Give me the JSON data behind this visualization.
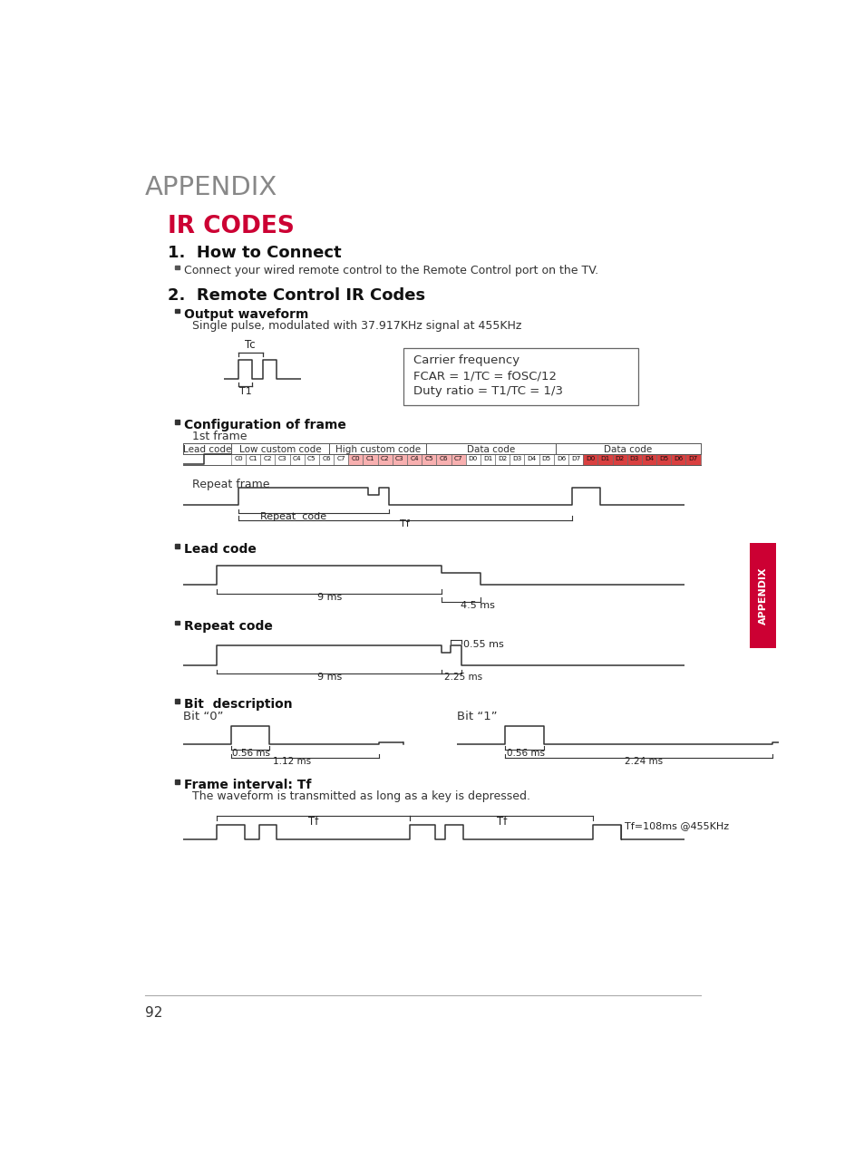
{
  "page_title": "APPENDIX",
  "section_title": "IR CODES",
  "section_title_color": "#cc0033",
  "subsection1": "1.  How to Connect",
  "subsection1_bullet": "Connect your wired remote control to the Remote Control port on the TV.",
  "subsection2": "2.  Remote Control IR Codes",
  "sub2_bullet1": "Output waveform",
  "sub2_bullet1_desc": "Single pulse, modulated with 37.917KHz signal at 455KHz",
  "carrier_box_lines": [
    "Carrier frequency",
    "FCAR = 1/TC = fOSC/12",
    "Duty ratio = T1/TC = 1/3"
  ],
  "config_frame_title": "Configuration of frame",
  "first_frame_label": "1st frame",
  "frame_headers": [
    "Lead code",
    "Low custom code",
    "High custom code",
    "Data code",
    "Data code"
  ],
  "frame_cells_row1": [
    "C0",
    "C1",
    "C2",
    "C3",
    "C4",
    "C5",
    "C6",
    "C7",
    "C0",
    "C1",
    "C2",
    "C3",
    "C4",
    "C5",
    "C6",
    "C7",
    "D0",
    "D1",
    "D2",
    "D3",
    "D4",
    "D5",
    "D6",
    "D7",
    "D0",
    "D1",
    "D2",
    "D3",
    "D4",
    "D5",
    "D6",
    "D7"
  ],
  "repeat_frame_label": "Repeat frame",
  "repeat_code_label": "Repeat  code",
  "tf_label": "Tf",
  "lead_code_title": "Lead code",
  "lead_9ms": "9 ms",
  "lead_45ms": "4.5 ms",
  "repeat_code_title": "Repeat code",
  "repeat_055ms": "0.55 ms",
  "repeat_9ms": "9 ms",
  "repeat_225ms": "2.25 ms",
  "bit_desc_title": "Bit  description",
  "bit0_label": "Bit “0”",
  "bit0_056ms": "0.56 ms",
  "bit0_112ms": "1.12 ms",
  "bit1_label": "Bit “1”",
  "bit1_056ms": "0.56 ms",
  "bit1_224ms": "2.24 ms",
  "frame_interval_title": "Frame interval: Tf",
  "frame_interval_desc": "The waveform is transmitted as long as a key is depressed.",
  "tf_label2": "Tf",
  "tf_label3": "Tf",
  "tf_note": "Tf=108ms @455KHz",
  "page_number": "92",
  "appendix_side": "APPENDIX",
  "background_color": "#ffffff",
  "text_color": "#333333",
  "highlight_pink": "#f4b0b0",
  "highlight_red": "#cc3333",
  "highlight_red2": "#e05555"
}
